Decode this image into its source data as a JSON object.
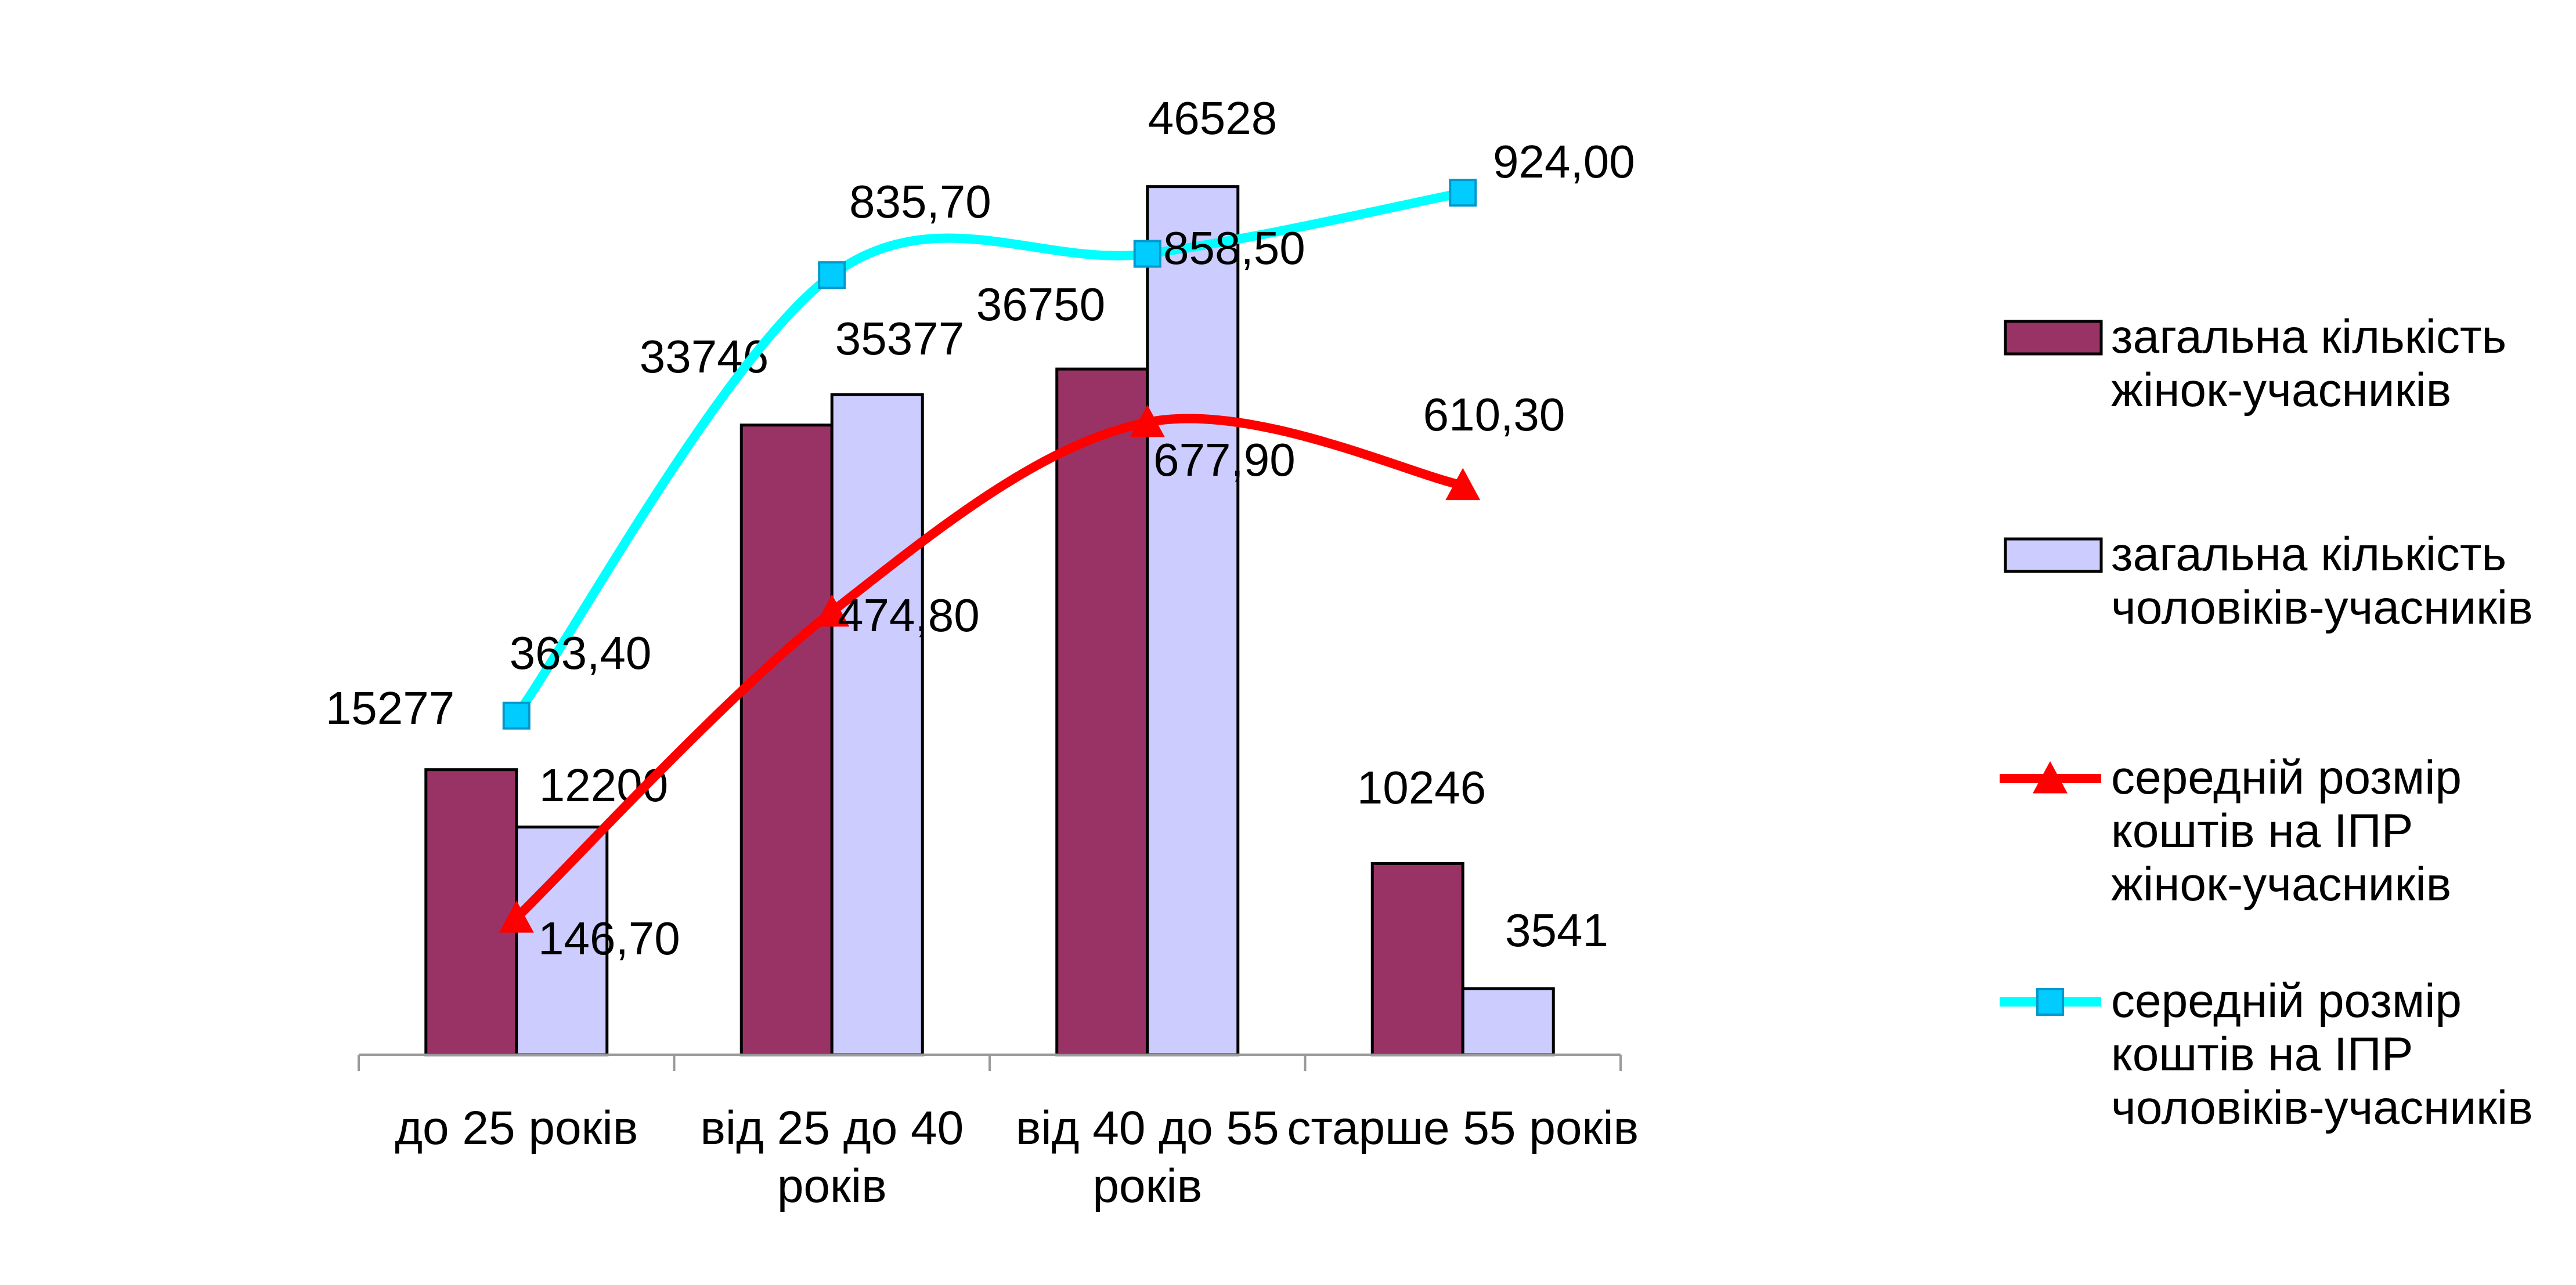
{
  "chart_data": {
    "type": "bar",
    "categories": [
      [
        "до 25 років"
      ],
      [
        "від 25 до 40",
        "років"
      ],
      [
        "від 40 до 55",
        "років"
      ],
      [
        "старше 55 років"
      ]
    ],
    "bar_ylim": [
      0,
      50000
    ],
    "line_ylim": [
      0,
      1000
    ],
    "grid": false,
    "legend_position": "right",
    "series": [
      {
        "name": [
          "загальна кількість",
          "жінок-учасників"
        ],
        "kind": "bar",
        "axis": "primary",
        "color": "#993366",
        "values": [
          15277,
          33746,
          36750,
          10246
        ],
        "labels": [
          "15277",
          "33746",
          "36750",
          "10246"
        ]
      },
      {
        "name": [
          "загальна кількість",
          "чоловіків-учасників"
        ],
        "kind": "bar",
        "axis": "primary",
        "color": "#ccccff",
        "values": [
          12200,
          35377,
          46528,
          3541
        ],
        "labels": [
          "12200",
          "35377",
          "46528",
          "3541"
        ]
      },
      {
        "name": [
          "середній розмір",
          "коштів на ІПР",
          "жінок-учасників"
        ],
        "kind": "line",
        "axis": "secondary",
        "color": "#ff0000",
        "marker": "triangle",
        "values": [
          146.7,
          474.8,
          677.9,
          610.3
        ],
        "labels": [
          "146,70",
          "474,80",
          "677,90",
          "610,30"
        ]
      },
      {
        "name": [
          "середній розмір",
          "коштів на ІПР",
          "чоловіків-учасників"
        ],
        "kind": "line",
        "axis": "secondary",
        "color": "#00ffff",
        "marker": "square",
        "marker_color": "#00ccff",
        "values": [
          363.4,
          835.7,
          858.5,
          924.0
        ],
        "labels": [
          "363,40",
          "835,70",
          "858,50",
          "924,00"
        ]
      }
    ]
  }
}
